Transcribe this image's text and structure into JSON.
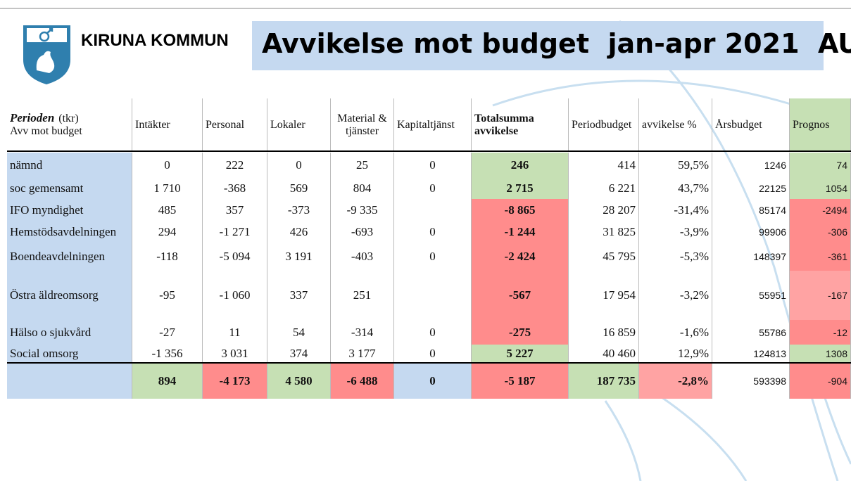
{
  "header": {
    "org": "KIRUNA KOMMUN",
    "title": "Avvikelse mot budget  jan-apr 2021  AU"
  },
  "table": {
    "corner": {
      "title": "Perioden",
      "unit": "(tkr)",
      "subtitle": "Avv mot budget"
    },
    "columns": [
      "Intäkter",
      "Personal",
      "Lokaler",
      "Material & tjänster",
      "Kapitaltjänst",
      "Totalsumma avvikelse",
      "Periodbudget",
      "avvikelse %",
      "Årsbudget",
      "Prognos"
    ],
    "rows": [
      [
        "nämnd",
        "0",
        "222",
        "0",
        "25",
        "0",
        "246",
        "414",
        "59,5%",
        "1246",
        "74"
      ],
      [
        "soc gemensamt",
        "1 710",
        "-368",
        "569",
        "804",
        "0",
        "2 715",
        "6 221",
        "43,7%",
        "22125",
        "1054"
      ],
      [
        "IFO myndighet",
        "485",
        "357",
        "-373",
        "-9 335",
        null,
        "-8 865",
        "28 207",
        "-31,4%",
        "85174",
        "-2494"
      ],
      [
        "Hemstödsavdelningen",
        "294",
        "-1 271",
        "426",
        "-693",
        "0",
        "-1 244",
        "31 825",
        "-3,9%",
        "99906",
        "-306"
      ],
      [
        "Boendeavdelningen",
        "-118",
        "-5 094",
        "3 191",
        "-403",
        "0",
        "-2 424",
        "45 795",
        "-5,3%",
        "148397",
        "-361"
      ],
      [
        "Östra äldreomsorg",
        "-95",
        "-1 060",
        "337",
        "251",
        null,
        "-567",
        "17 954",
        "-3,2%",
        "55951",
        "-167"
      ],
      [
        "Hälso o sjukvård",
        "-27",
        "11",
        "54",
        "-314",
        "0",
        "-275",
        "16 859",
        "-1,6%",
        "55786",
        "-12"
      ],
      [
        "Social omsorg",
        "-1 356",
        "3 031",
        "374",
        "3 177",
        "0",
        "5 227",
        "40 460",
        "12,9%",
        "124813",
        "1308"
      ],
      [
        null,
        "894",
        "-4 173",
        "4 580",
        "-6 488",
        "0",
        "-5 187",
        "187 735",
        "-2,8%",
        "593398",
        "-904"
      ]
    ]
  }
}
